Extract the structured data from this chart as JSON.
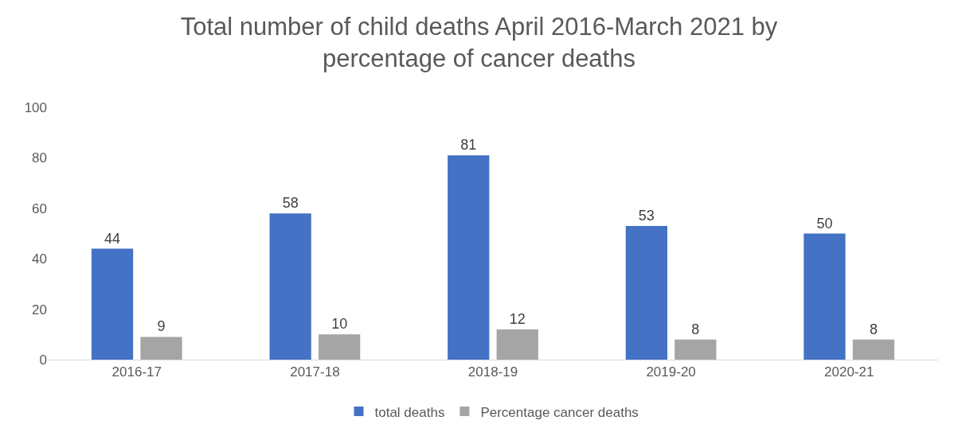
{
  "chart_data": {
    "type": "bar",
    "title": "Total number of child deaths April 2016-March 2021 by percentage of cancer deaths",
    "categories": [
      "2016-17",
      "2017-18",
      "2018-19",
      "2019-20",
      "2020-21"
    ],
    "series": [
      {
        "name": "total deaths",
        "color": "#4472c4",
        "values": [
          44,
          58,
          81,
          53,
          50
        ]
      },
      {
        "name": "Percentage cancer deaths",
        "color": "#a5a5a5",
        "values": [
          9,
          10,
          12,
          8,
          8
        ]
      }
    ],
    "ylim": [
      0,
      100
    ],
    "yticks": [
      0,
      20,
      40,
      60,
      80,
      100
    ],
    "grid": false,
    "legend": "bottom",
    "data_labels": true
  }
}
